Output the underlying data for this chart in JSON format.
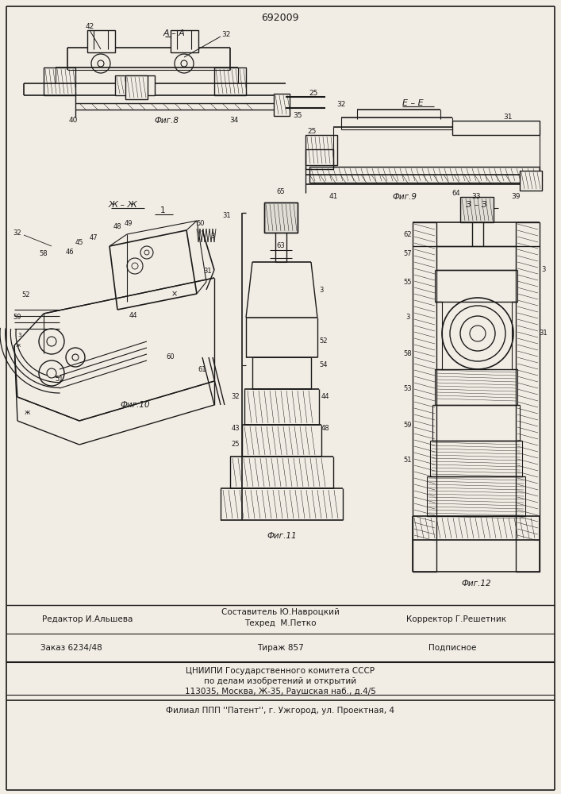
{
  "patent_number": "692009",
  "bg": "#f2ede4",
  "lc": "#1a1a1a",
  "tc": "#1a1a1a",
  "footer": {
    "editor": "Редактор И.Альшева",
    "composer": "Составитель Ю.Навроцкий",
    "techred": "Техред  М.Петко",
    "corrector": "Корректор Г.Решетник",
    "order": "Заказ 6234/48",
    "tirazh": "Тираж 857",
    "podpisnoe": "Подписное",
    "tsnipi1": "ЦНИИПИ Государственного комитета СССР",
    "tsnipi2": "по делам изобретений и открытий",
    "tsnipi3": "113035, Москва, Ж-35, Раушская наб., д.4/5",
    "filial": "Филиал ППП ''Патент'', г. Ужгород, ул. Проектная, 4"
  }
}
